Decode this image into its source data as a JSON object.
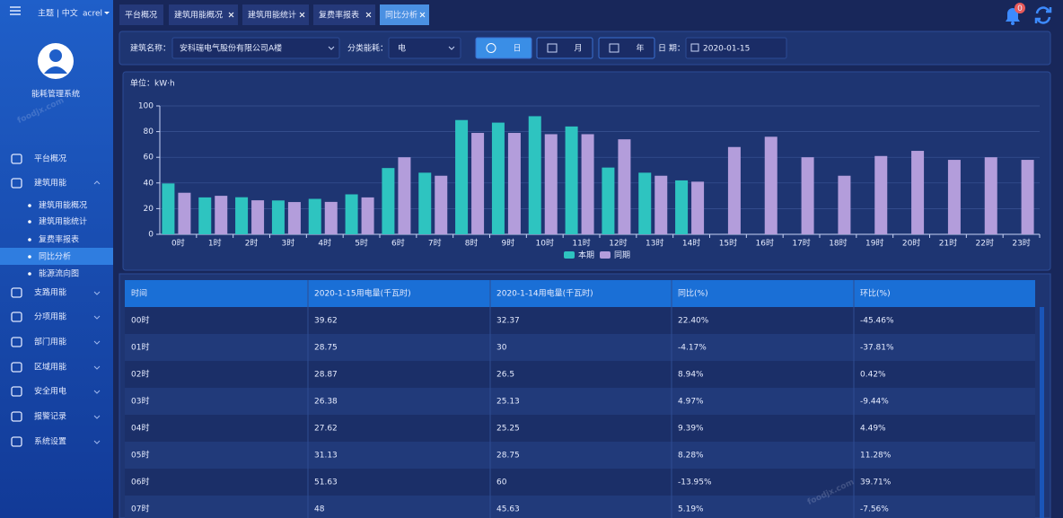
{
  "sidebar": {
    "header": "主题 | 中文",
    "user": "acrel",
    "system_name": "能耗管理系统",
    "menu": [
      {
        "label": "平台概况"
      },
      {
        "label": "建筑用能",
        "children": [
          "建筑用能概况",
          "建筑用能统计",
          "复费率报表",
          "同比分析",
          "能源流向图"
        ]
      },
      {
        "label": "支路用能"
      },
      {
        "label": "分项用能"
      },
      {
        "label": "部门用能"
      },
      {
        "label": "区域用能"
      },
      {
        "label": "安全用电"
      },
      {
        "label": "报警记录"
      },
      {
        "label": "系统设置"
      }
    ]
  },
  "tabs": [
    "平台概况",
    "建筑用能概况",
    "建筑用能统计",
    "复费率报表",
    "同比分析"
  ],
  "notifications": 0,
  "filters": {
    "building_label": "建筑名称：",
    "building": "安科瑞电气股份有限公司A楼",
    "category_label": "分类能耗：",
    "category": "电",
    "periods": [
      "日",
      "月",
      "年"
    ],
    "date_label": "日 期：",
    "date": "2020-01-15"
  },
  "chart_data": {
    "type": "bar",
    "y_label": "单位：kW·h",
    "categories": [
      "0时",
      "1时",
      "2时",
      "3时",
      "4时",
      "5时",
      "6时",
      "7时",
      "8时",
      "9时",
      "10时",
      "11时",
      "12时",
      "13时",
      "14时",
      "15时",
      "16时",
      "17时",
      "18时",
      "19时",
      "20时",
      "21时",
      "22时",
      "23时"
    ],
    "series": [
      {
        "name": "本期",
        "color": "#2ec4c0",
        "values": [
          39.62,
          28.75,
          28.87,
          26.38,
          27.62,
          31.13,
          51.63,
          48,
          89,
          87,
          92,
          84,
          52,
          48,
          42,
          null,
          null,
          null,
          null,
          null,
          null,
          null,
          null,
          null
        ]
      },
      {
        "name": "同期",
        "color": "#b39ddb",
        "values": [
          32.37,
          30,
          26.5,
          25.13,
          25.25,
          28.75,
          60,
          45.63,
          79,
          79,
          78,
          78,
          74,
          45.63,
          41,
          68,
          76,
          60,
          45.63,
          61,
          65,
          58,
          60,
          58
        ]
      }
    ],
    "ylim": [
      0,
      100
    ],
    "yticks": [
      0,
      20,
      40,
      60,
      80,
      100
    ],
    "grid": true,
    "legend": "bottom"
  },
  "table": {
    "columns": [
      "时间",
      "2020-1-15用电量(千瓦时)",
      "2020-1-14用电量(千瓦时)",
      "同比(%)",
      "环比(%)"
    ],
    "rows": [
      [
        "00时",
        "39.62",
        "32.37",
        "22.40%",
        "-45.46%"
      ],
      [
        "01时",
        "28.75",
        "30",
        "-4.17%",
        "-37.81%"
      ],
      [
        "02时",
        "28.87",
        "26.5",
        "8.94%",
        "0.42%"
      ],
      [
        "03时",
        "26.38",
        "25.13",
        "4.97%",
        "-9.44%"
      ],
      [
        "04时",
        "27.62",
        "25.25",
        "9.39%",
        "4.49%"
      ],
      [
        "05时",
        "31.13",
        "28.75",
        "8.28%",
        "11.28%"
      ],
      [
        "06时",
        "51.63",
        "60",
        "-13.95%",
        "39.71%"
      ],
      [
        "07时",
        "48",
        "45.63",
        "5.19%",
        "-7.56%"
      ]
    ]
  },
  "watermark": "foodjx.com"
}
